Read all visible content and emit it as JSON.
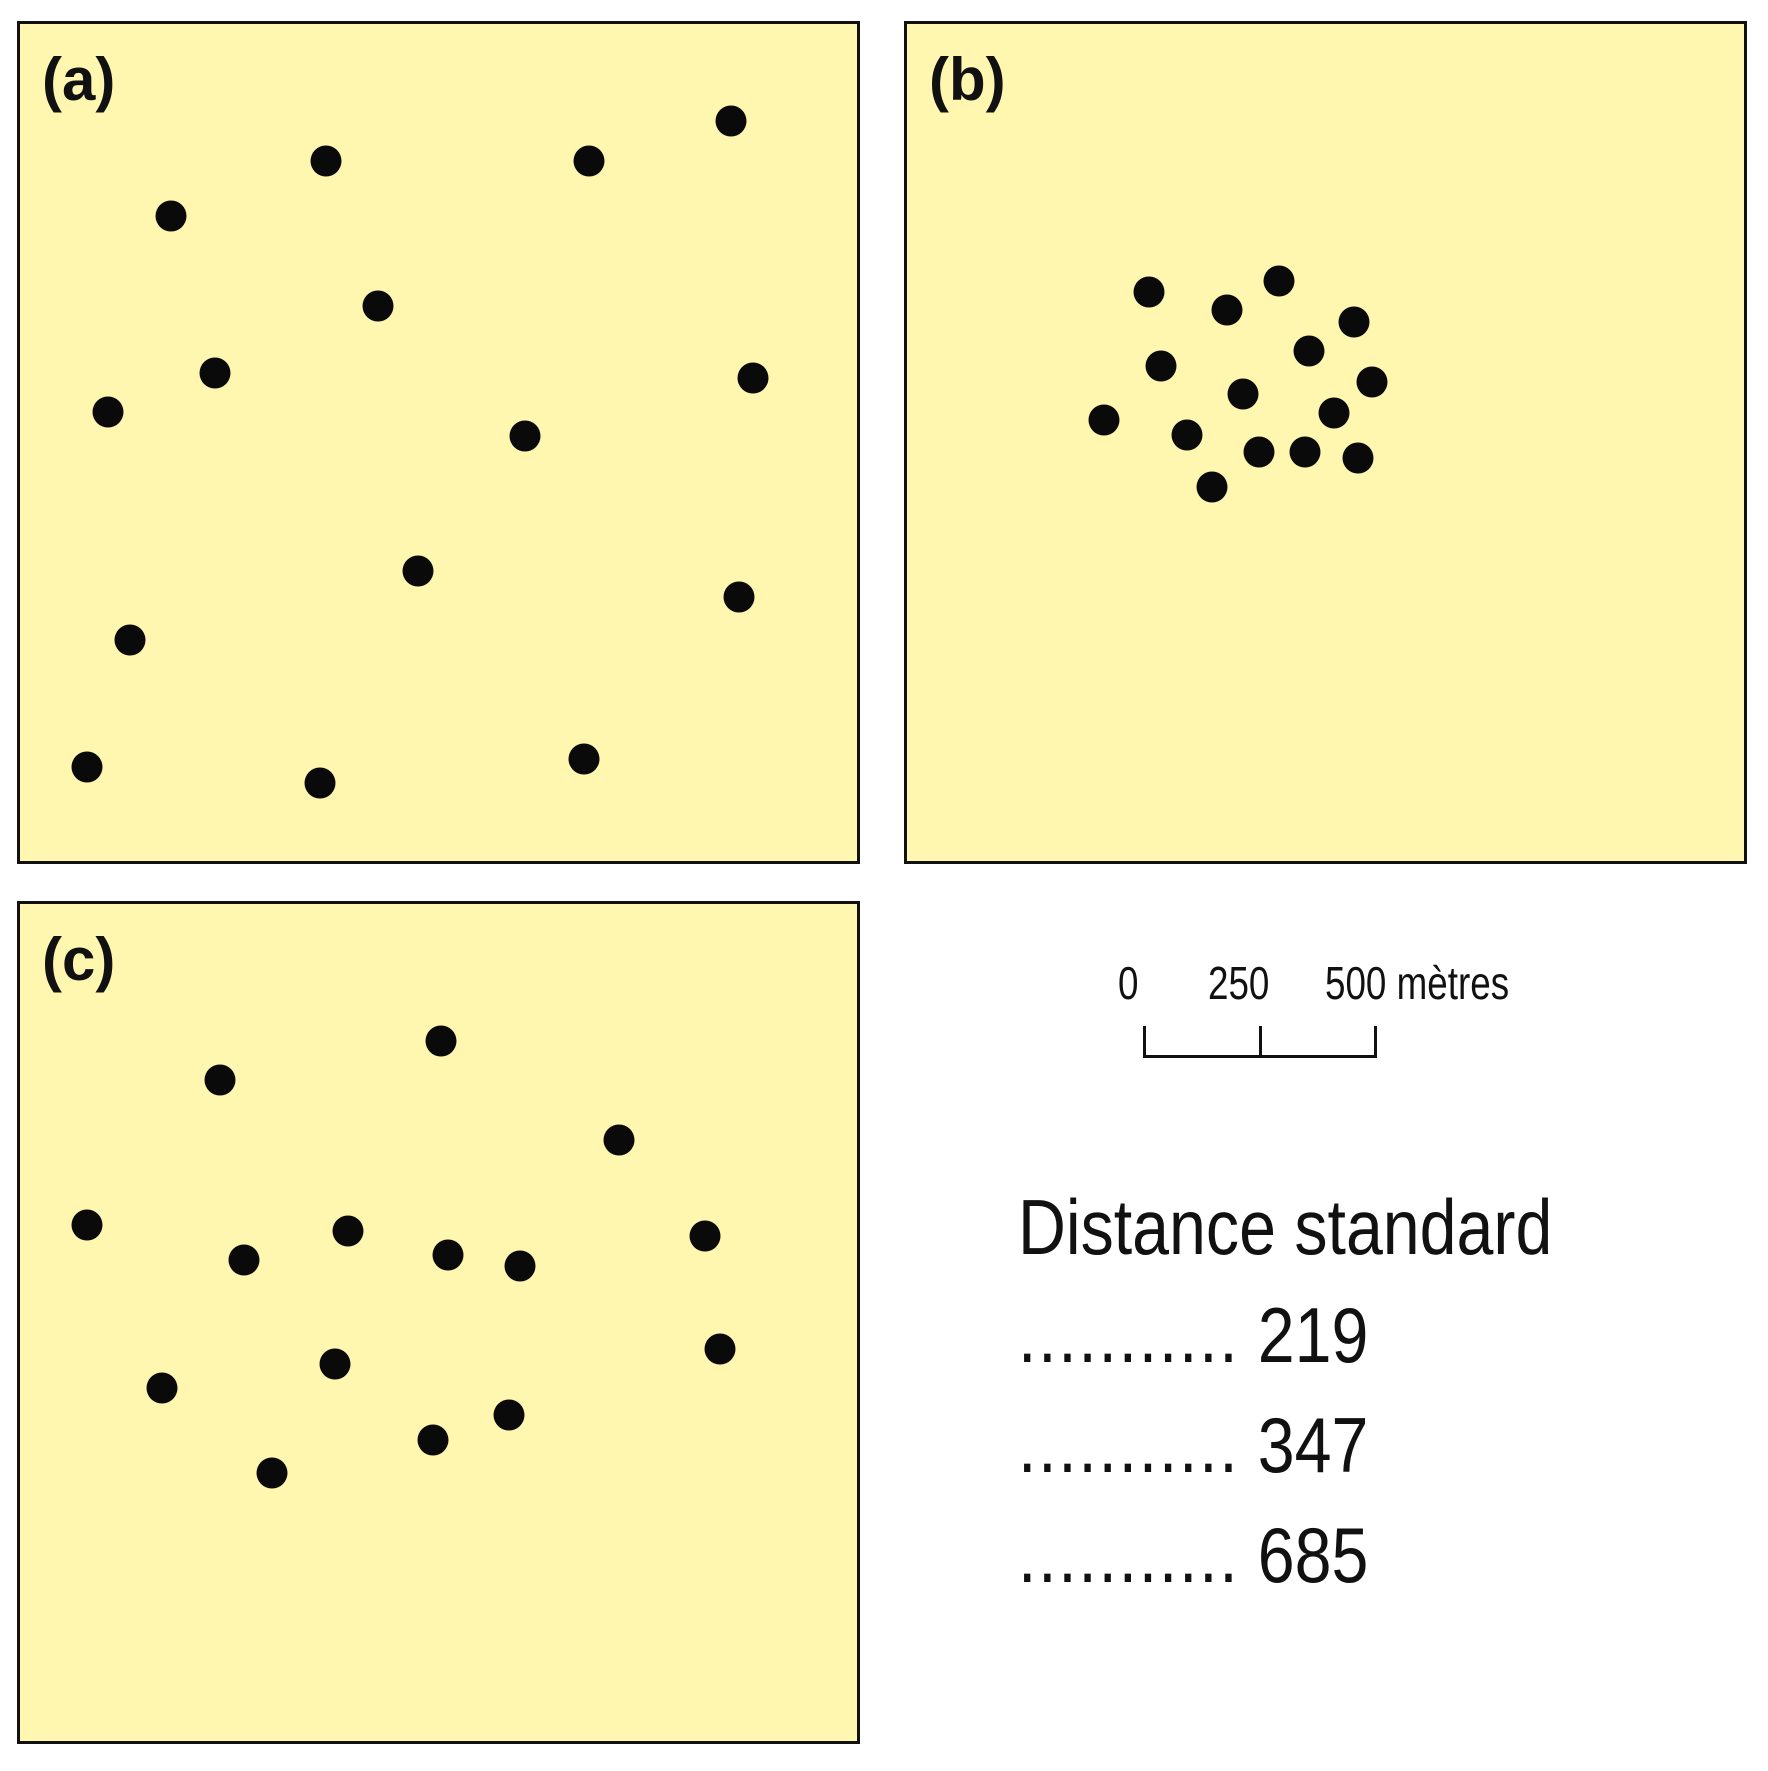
{
  "panels": {
    "a": {
      "label": "(a)"
    },
    "b": {
      "label": "(b)"
    },
    "c": {
      "label": "(c)"
    }
  },
  "colors": {
    "panel_fill": "#fff7b0",
    "dot": "#0a0a0a",
    "border": "#111111"
  },
  "scale_bar": {
    "tick_0": "0",
    "tick_250": "250",
    "tick_500": "500 mètres"
  },
  "legend": {
    "title": "Distance standard",
    "rows": [
      {
        "leader": "...........",
        "value": "219"
      },
      {
        "leader": "...........",
        "value": "347"
      },
      {
        "leader": "...........",
        "value": "685"
      }
    ]
  }
}
